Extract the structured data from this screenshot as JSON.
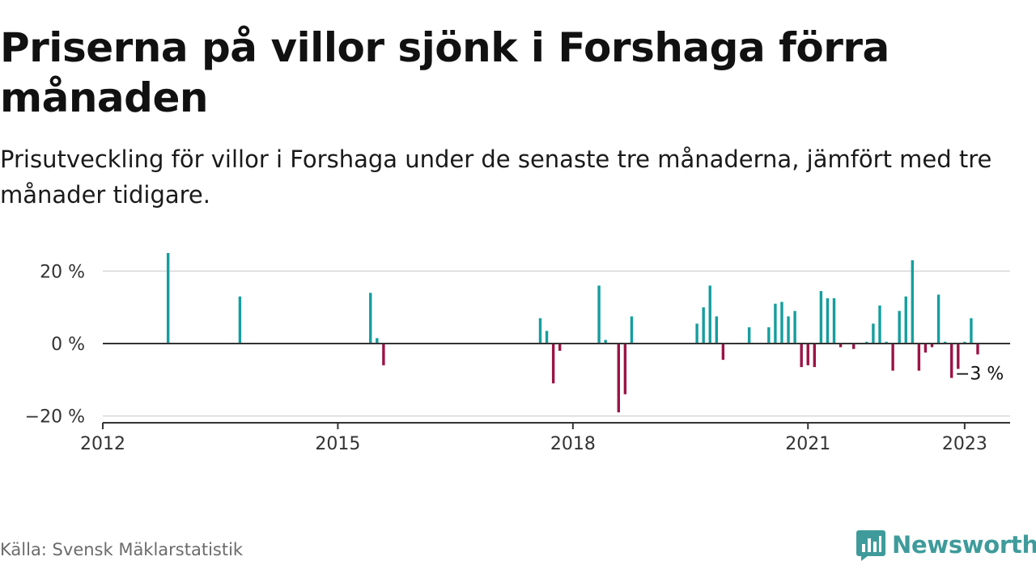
{
  "title": "Priserna på villor sjönk i Forshaga förra månaden",
  "subtitle": "Prisutveckling för villor i Forshaga under de senaste tre månaderna, jämfört med tre månader tidigare.",
  "source": "Källa: Svensk Mäklarstatistik",
  "brand": {
    "name": "Newsworthy",
    "icon": "bar-chart-logo-icon"
  },
  "colors": {
    "positive": "#159e9e",
    "negative": "#9b1446",
    "grid": "#d6d6d6",
    "axis": "#333333",
    "brand": "#3f9b9b"
  },
  "chart_data": {
    "type": "bar",
    "title": "",
    "xlabel": "",
    "ylabel": "",
    "xlim": [
      2012.0,
      2023.58
    ],
    "ylim": [
      -22,
      22
    ],
    "x_ticks": [
      {
        "value": 2012,
        "label": "2012"
      },
      {
        "value": 2015,
        "label": "2015"
      },
      {
        "value": 2018,
        "label": "2018"
      },
      {
        "value": 2021,
        "label": "2021"
      },
      {
        "value": 2023,
        "label": "2023"
      }
    ],
    "y_ticks": [
      {
        "value": 20,
        "label": "20 %"
      },
      {
        "value": 0,
        "label": "0 %"
      },
      {
        "value": -20,
        "label": "−20 %"
      }
    ],
    "grid": true,
    "series": [
      {
        "values": [
          {
            "date": "2012-11",
            "value": 25
          },
          {
            "date": "2013-10",
            "value": 13
          },
          {
            "date": "2015-06",
            "value": 14
          },
          {
            "date": "2015-07",
            "value": 1.5
          },
          {
            "date": "2015-08",
            "value": -6
          },
          {
            "date": "2017-08",
            "value": 7
          },
          {
            "date": "2017-09",
            "value": 3.5
          },
          {
            "date": "2017-10",
            "value": -11
          },
          {
            "date": "2017-11",
            "value": -2
          },
          {
            "date": "2018-05",
            "value": 16
          },
          {
            "date": "2018-06",
            "value": 1
          },
          {
            "date": "2018-08",
            "value": -19
          },
          {
            "date": "2018-09",
            "value": -14
          },
          {
            "date": "2018-10",
            "value": 7.5
          },
          {
            "date": "2019-08",
            "value": 5.5
          },
          {
            "date": "2019-09",
            "value": 10
          },
          {
            "date": "2019-10",
            "value": 16
          },
          {
            "date": "2019-11",
            "value": 7.5
          },
          {
            "date": "2019-12",
            "value": -4.5
          },
          {
            "date": "2020-04",
            "value": 4.5
          },
          {
            "date": "2020-07",
            "value": 4.5
          },
          {
            "date": "2020-08",
            "value": 11
          },
          {
            "date": "2020-09",
            "value": 11.5
          },
          {
            "date": "2020-10",
            "value": 7.5
          },
          {
            "date": "2020-11",
            "value": 9
          },
          {
            "date": "2020-12",
            "value": -6.5
          },
          {
            "date": "2021-01",
            "value": -6
          },
          {
            "date": "2021-02",
            "value": -6.5
          },
          {
            "date": "2021-03",
            "value": 14.5
          },
          {
            "date": "2021-04",
            "value": 12.5
          },
          {
            "date": "2021-05",
            "value": 12.5
          },
          {
            "date": "2021-06",
            "value": -1
          },
          {
            "date": "2021-08",
            "value": -1.5
          },
          {
            "date": "2021-10",
            "value": 0.5
          },
          {
            "date": "2021-11",
            "value": 5.5
          },
          {
            "date": "2021-12",
            "value": 10.5
          },
          {
            "date": "2022-01",
            "value": 0.5
          },
          {
            "date": "2022-02",
            "value": -7.5
          },
          {
            "date": "2022-03",
            "value": 9
          },
          {
            "date": "2022-04",
            "value": 13
          },
          {
            "date": "2022-05",
            "value": 23
          },
          {
            "date": "2022-06",
            "value": -7.5
          },
          {
            "date": "2022-07",
            "value": -2.5
          },
          {
            "date": "2022-08",
            "value": -1
          },
          {
            "date": "2022-09",
            "value": 13.5
          },
          {
            "date": "2022-10",
            "value": 0.5
          },
          {
            "date": "2022-11",
            "value": -9.5
          },
          {
            "date": "2022-12",
            "value": -7
          },
          {
            "date": "2023-01",
            "value": 0.5
          },
          {
            "date": "2023-02",
            "value": 7
          },
          {
            "date": "2023-03",
            "value": -3
          }
        ]
      }
    ],
    "annotation": {
      "date": "2023-03",
      "label": "−3 %"
    }
  }
}
